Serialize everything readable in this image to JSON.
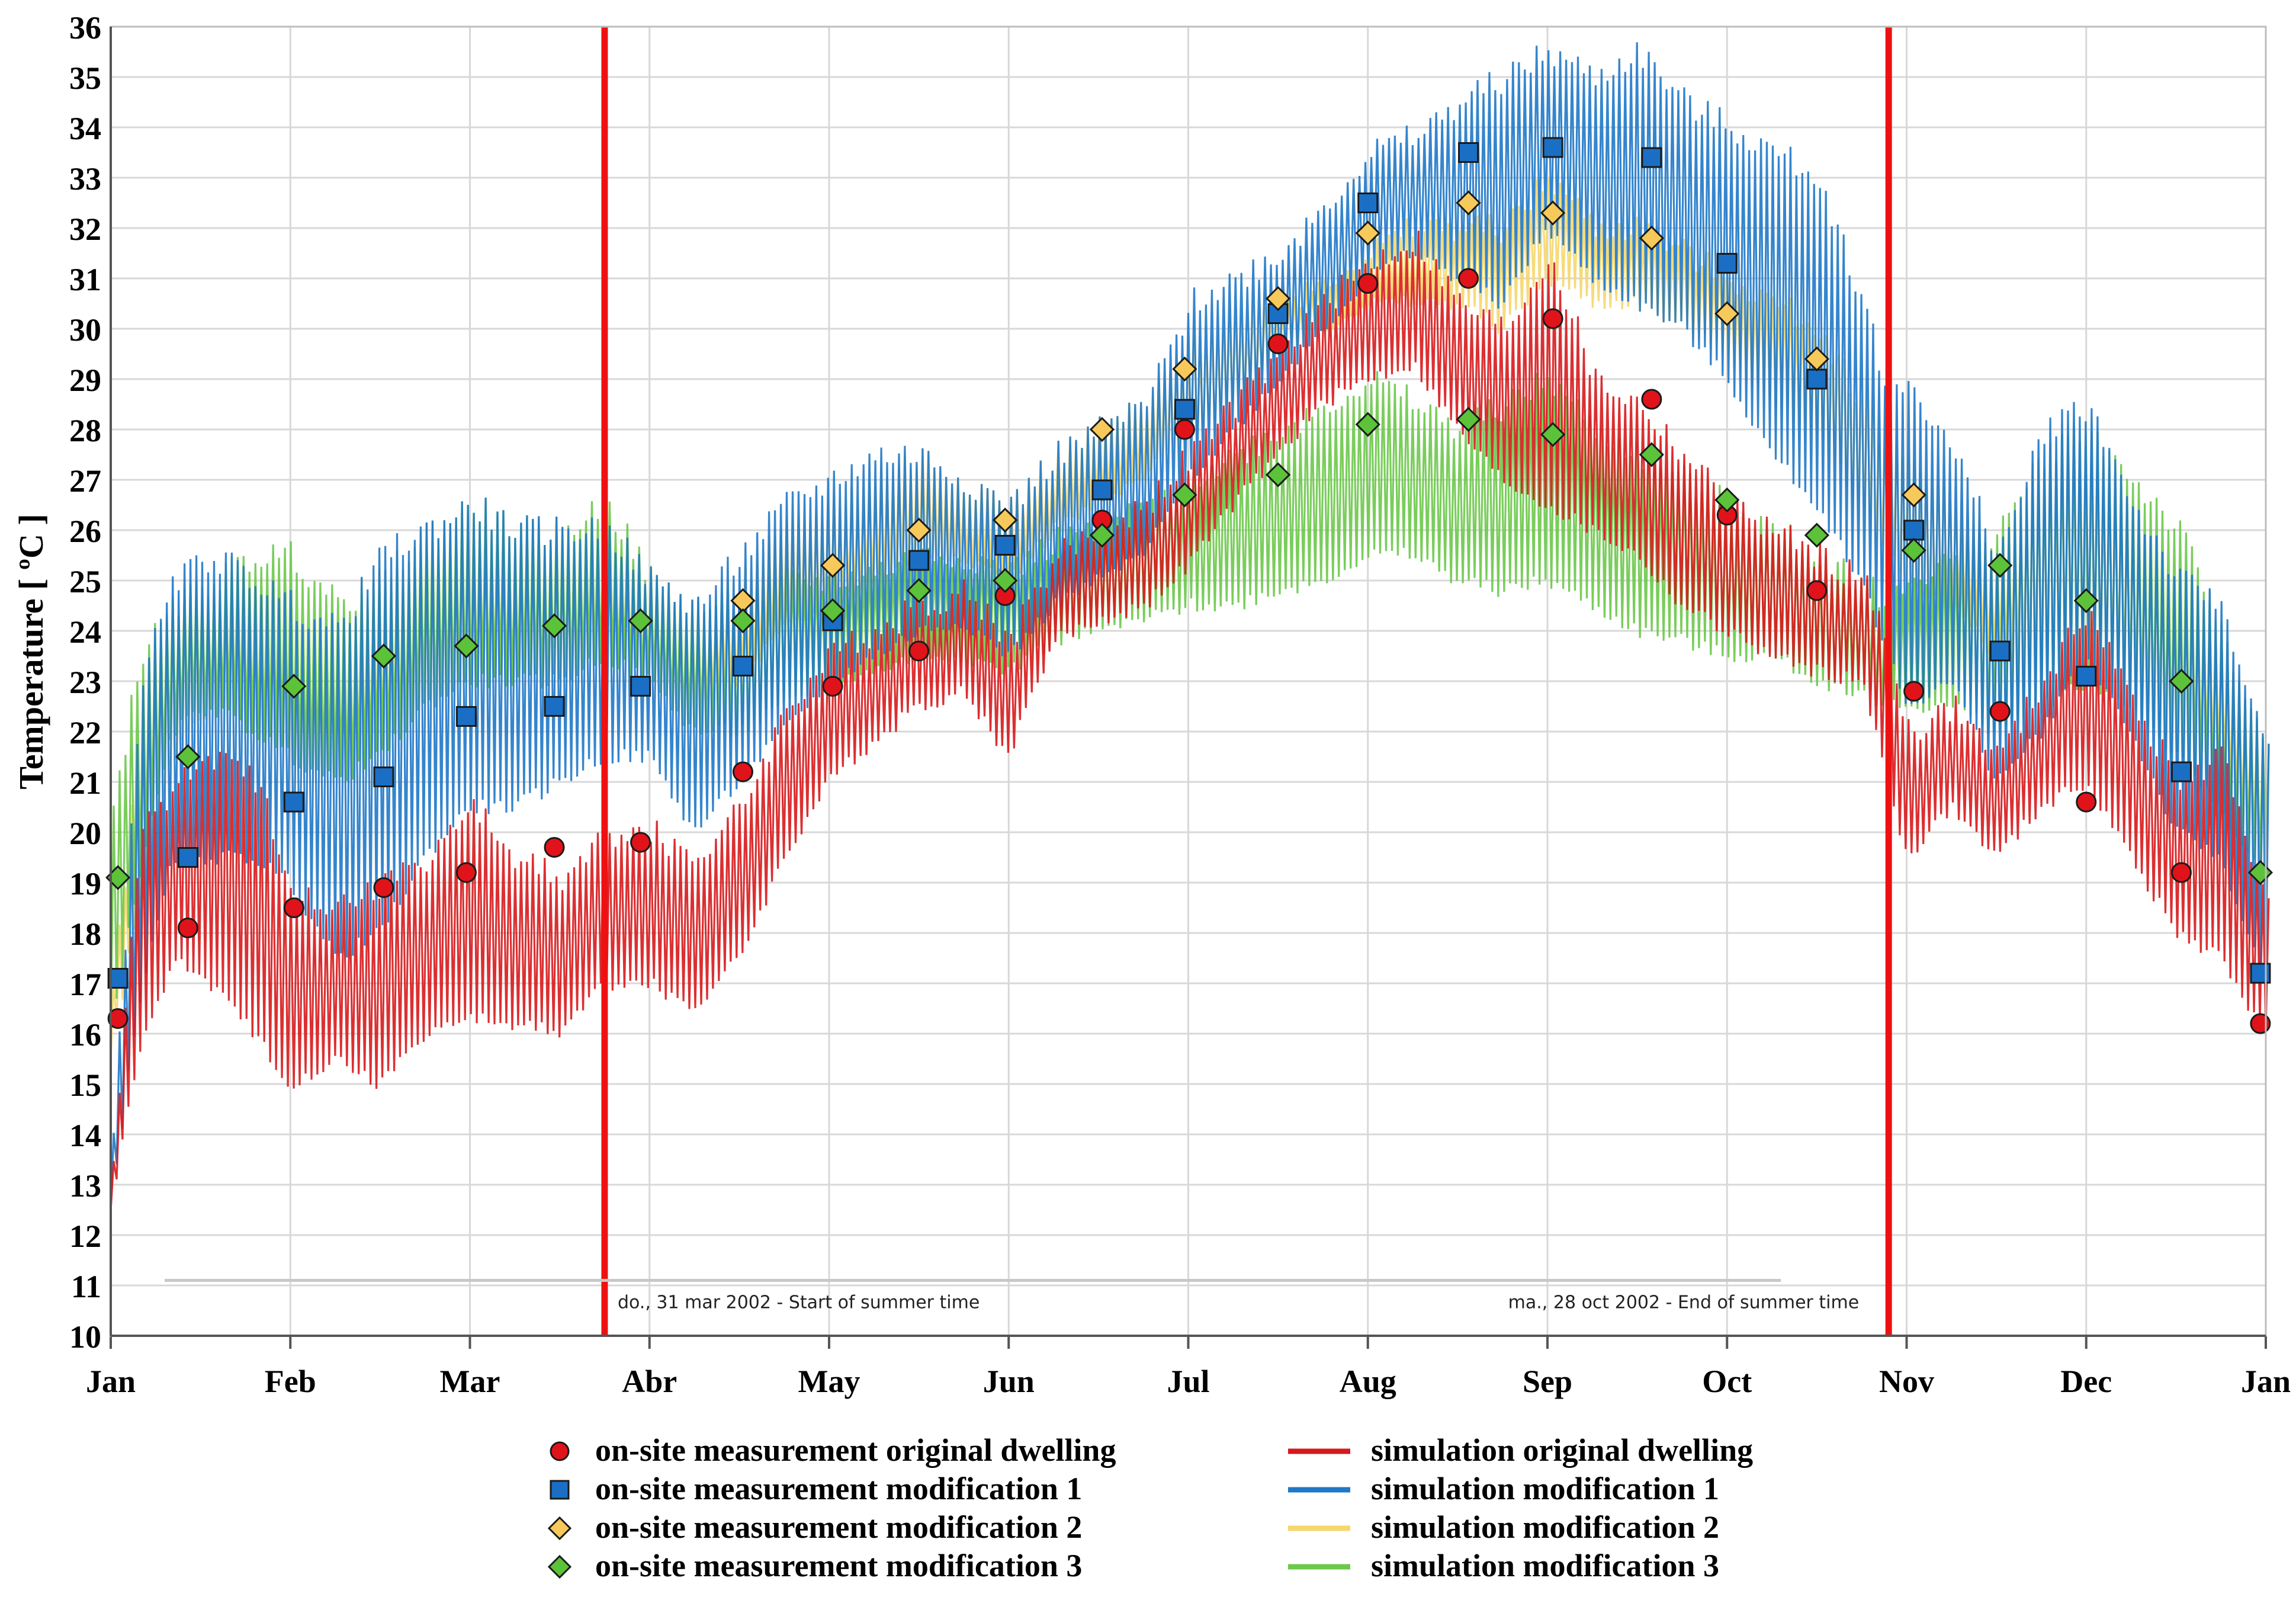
{
  "chart_data": {
    "type": "line",
    "title": "",
    "xlabel": "",
    "ylabel": "Temperature [ ºC ]",
    "ylim": [
      10,
      36
    ],
    "yticks": [
      10,
      11,
      12,
      13,
      14,
      15,
      16,
      17,
      18,
      19,
      20,
      21,
      22,
      23,
      24,
      25,
      26,
      27,
      28,
      29,
      30,
      31,
      32,
      33,
      34,
      35,
      36
    ],
    "xlim": [
      0,
      12
    ],
    "month_labels": [
      "Jan",
      "Feb",
      "Mar",
      "Abr",
      "May",
      "Jun",
      "Jul",
      "Aug",
      "Sep",
      "Oct",
      "Nov",
      "Dec",
      "Jan"
    ],
    "grid": true,
    "legend_position": "bottom",
    "colors": {
      "original": "#d7191c",
      "mod1": "#1f78c8",
      "mod2": "#f5d76e",
      "mod3": "#6cc84a",
      "marker_mod2": "#f7c95a",
      "marker_mod3": "#5cc23a",
      "marker_mod1": "#1a6fc4",
      "marker_orig": "#e0131a",
      "vline": "#ee1111",
      "grid": "#d8d8d8"
    },
    "annotations": [
      {
        "x": 2.75,
        "text": "do., 31 mar 2002 - Start of summer time",
        "side": "right"
      },
      {
        "x": 9.9,
        "text": "ma., 28 oct 2002 - End of summer time",
        "side": "left"
      }
    ],
    "vlines": [
      2.75,
      9.9
    ],
    "series": [
      {
        "name": "on-site measurement original dwelling",
        "kind": "marker",
        "shape": "circle",
        "color_key": "marker_orig",
        "x": [
          0.04,
          0.43,
          1.02,
          1.52,
          1.98,
          2.47,
          2.95,
          3.52,
          4.02,
          4.5,
          4.98,
          5.52,
          5.98,
          6.5,
          7.0,
          7.56,
          8.03,
          8.58,
          9.0,
          9.5,
          10.04,
          10.52,
          11.0,
          11.53,
          11.97
        ],
        "y": [
          16.3,
          18.1,
          18.5,
          18.9,
          19.2,
          19.7,
          19.8,
          21.2,
          22.9,
          23.6,
          24.7,
          26.2,
          28.0,
          29.7,
          30.9,
          31.0,
          30.2,
          28.6,
          26.3,
          24.8,
          22.8,
          22.4,
          20.6,
          19.2,
          16.2
        ]
      },
      {
        "name": "on-site measurement modification 1",
        "kind": "marker",
        "shape": "square",
        "color_key": "marker_mod1",
        "x": [
          0.04,
          0.43,
          1.02,
          1.52,
          1.98,
          2.47,
          2.95,
          3.52,
          4.02,
          4.5,
          4.98,
          5.52,
          5.98,
          6.5,
          7.0,
          7.56,
          8.03,
          8.58,
          9.0,
          9.5,
          10.04,
          10.52,
          11.0,
          11.53,
          11.97
        ],
        "y": [
          17.1,
          19.5,
          20.6,
          21.1,
          22.3,
          22.5,
          22.9,
          23.3,
          24.2,
          25.4,
          25.7,
          26.8,
          28.4,
          30.3,
          32.5,
          33.5,
          33.6,
          33.4,
          31.3,
          29.0,
          26.0,
          23.6,
          23.1,
          21.2,
          17.2
        ]
      },
      {
        "name": "on-site measurement modification 2",
        "kind": "marker",
        "shape": "diamond",
        "color_key": "marker_mod2",
        "x": [
          3.52,
          4.02,
          4.5,
          4.98,
          5.52,
          5.98,
          6.5,
          7.0,
          7.56,
          8.03,
          8.58,
          9.0,
          9.5,
          10.04
        ],
        "y": [
          24.6,
          25.3,
          26.0,
          26.2,
          28.0,
          29.2,
          30.6,
          31.9,
          32.5,
          32.3,
          31.8,
          30.3,
          29.4,
          26.7
        ]
      },
      {
        "name": "on-site measurement modification 3",
        "kind": "marker",
        "shape": "diamond",
        "color_key": "marker_mod3",
        "x": [
          0.04,
          0.43,
          1.02,
          1.52,
          1.98,
          2.47,
          2.95,
          3.52,
          4.02,
          4.5,
          4.98,
          5.52,
          5.98,
          6.5,
          7.0,
          7.56,
          8.03,
          8.58,
          9.0,
          9.5,
          10.04,
          10.52,
          11.0,
          11.53,
          11.97
        ],
        "y": [
          19.1,
          21.5,
          22.9,
          23.5,
          23.7,
          24.1,
          24.2,
          24.2,
          24.4,
          24.8,
          25.0,
          25.9,
          26.7,
          27.1,
          28.1,
          28.2,
          27.9,
          27.5,
          26.6,
          25.9,
          25.6,
          25.3,
          24.6,
          23.0,
          19.2
        ]
      },
      {
        "name": "simulation original dwelling",
        "kind": "band",
        "color_key": "original",
        "x": [
          0.0,
          0.15,
          0.35,
          0.55,
          0.8,
          1.0,
          1.25,
          1.5,
          1.75,
          2.0,
          2.25,
          2.5,
          2.75,
          3.0,
          3.25,
          3.5,
          3.75,
          4.0,
          4.25,
          4.5,
          4.75,
          5.0,
          5.25,
          5.5,
          5.75,
          6.0,
          6.25,
          6.5,
          6.75,
          7.0,
          7.25,
          7.5,
          7.75,
          8.0,
          8.25,
          8.5,
          8.75,
          9.0,
          9.25,
          9.5,
          9.75,
          9.9,
          10.0,
          10.25,
          10.5,
          10.75,
          11.0,
          11.25,
          11.5,
          11.75,
          12.0
        ],
        "lo": [
          12.5,
          15.5,
          17.5,
          17.0,
          16.0,
          15.0,
          15.5,
          15.0,
          16.0,
          16.3,
          16.2,
          16.0,
          17.0,
          17.0,
          16.5,
          17.5,
          19.5,
          21.0,
          21.8,
          22.5,
          22.8,
          21.5,
          23.8,
          24.2,
          24.5,
          25.3,
          26.5,
          27.5,
          28.5,
          29.0,
          29.3,
          28.0,
          27.0,
          26.5,
          26.0,
          25.5,
          24.5,
          24.0,
          23.5,
          23.2,
          23.0,
          21.0,
          19.5,
          20.5,
          19.5,
          20.5,
          21.0,
          19.5,
          18.0,
          17.5,
          16.0
        ],
        "hi": [
          13.5,
          20.0,
          21.0,
          21.5,
          21.0,
          19.0,
          18.5,
          19.0,
          19.5,
          20.5,
          19.5,
          19.0,
          20.0,
          20.0,
          19.5,
          20.5,
          22.5,
          23.5,
          24.0,
          24.5,
          24.8,
          23.8,
          25.5,
          26.0,
          26.5,
          27.5,
          28.5,
          29.5,
          30.5,
          31.3,
          31.8,
          30.5,
          30.0,
          31.5,
          29.0,
          28.5,
          27.5,
          26.5,
          26.0,
          25.5,
          25.0,
          23.5,
          22.0,
          22.5,
          21.5,
          23.0,
          24.5,
          22.5,
          21.0,
          21.5,
          18.5
        ]
      },
      {
        "name": "simulation modification 1",
        "kind": "band",
        "color_key": "mod1",
        "x": [
          0.0,
          0.15,
          0.35,
          0.55,
          0.8,
          1.0,
          1.25,
          1.5,
          1.75,
          2.0,
          2.25,
          2.5,
          2.75,
          3.0,
          3.25,
          3.5,
          3.75,
          4.0,
          4.25,
          4.5,
          4.75,
          5.0,
          5.25,
          5.5,
          5.75,
          6.0,
          6.25,
          6.5,
          6.75,
          7.0,
          7.25,
          7.5,
          7.75,
          8.0,
          8.25,
          8.5,
          8.75,
          9.0,
          9.25,
          9.5,
          9.75,
          9.9,
          10.0,
          10.25,
          10.5,
          10.75,
          11.0,
          11.25,
          11.5,
          11.75,
          12.0
        ],
        "lo": [
          12.5,
          16.5,
          19.5,
          19.5,
          19.5,
          19.0,
          17.5,
          18.0,
          19.5,
          20.5,
          20.5,
          21.0,
          21.5,
          21.5,
          20.0,
          21.0,
          22.0,
          23.0,
          23.5,
          24.0,
          24.2,
          23.5,
          24.5,
          25.0,
          25.5,
          27.0,
          28.0,
          29.0,
          30.0,
          31.0,
          31.5,
          31.0,
          30.5,
          32.0,
          31.0,
          30.5,
          30.0,
          29.0,
          27.5,
          26.5,
          25.0,
          23.5,
          22.5,
          23.0,
          21.0,
          22.0,
          23.5,
          22.0,
          20.0,
          19.5,
          17.0
        ],
        "hi": [
          14.0,
          23.0,
          25.0,
          25.5,
          25.0,
          24.5,
          24.0,
          25.5,
          26.0,
          26.5,
          26.0,
          26.0,
          26.0,
          25.0,
          24.5,
          25.5,
          26.5,
          27.0,
          27.5,
          27.5,
          27.0,
          26.5,
          27.5,
          28.0,
          28.5,
          30.5,
          31.0,
          31.5,
          32.5,
          33.5,
          33.8,
          34.5,
          35.0,
          35.5,
          35.0,
          35.5,
          34.5,
          34.0,
          33.5,
          33.0,
          30.5,
          28.5,
          29.0,
          27.5,
          25.5,
          28.0,
          28.5,
          26.5,
          25.0,
          24.5,
          21.5
        ]
      },
      {
        "name": "simulation modification 2",
        "kind": "band",
        "color_key": "mod2",
        "x": [
          0.0,
          0.15,
          0.35,
          0.55,
          0.8,
          1.0,
          1.25,
          1.5,
          1.75,
          2.0,
          2.25,
          2.5,
          2.75,
          3.0,
          3.25,
          3.5,
          3.75,
          4.0,
          4.25,
          4.5,
          4.75,
          5.0,
          5.25,
          5.5,
          5.75,
          6.0,
          6.25,
          6.5,
          6.75,
          7.0,
          7.25,
          7.5,
          7.75,
          8.0,
          8.25,
          8.5,
          8.75,
          9.0,
          9.25,
          9.5,
          9.75,
          9.9,
          10.0,
          10.25,
          10.5,
          10.75,
          11.0,
          11.25,
          11.5,
          11.75,
          12.0
        ],
        "lo": [
          15.5,
          18.5,
          21.5,
          22.5,
          22.0,
          21.5,
          21.0,
          21.5,
          22.5,
          23.0,
          23.0,
          23.0,
          23.5,
          23.0,
          22.5,
          23.0,
          24.0,
          24.5,
          25.0,
          25.5,
          25.5,
          25.0,
          26.0,
          26.5,
          27.0,
          28.0,
          28.5,
          29.5,
          30.0,
          30.5,
          30.5,
          30.5,
          30.0,
          31.0,
          30.5,
          30.5,
          30.0,
          29.5,
          28.5,
          28.0,
          26.5,
          25.5,
          25.0,
          24.5,
          23.5,
          24.0,
          24.5,
          23.5,
          22.0,
          21.5,
          19.0
        ],
        "hi": [
          17.0,
          22.0,
          24.5,
          24.5,
          24.0,
          23.5,
          23.5,
          24.5,
          25.0,
          25.5,
          25.0,
          25.0,
          25.5,
          24.5,
          24.0,
          25.0,
          26.0,
          26.5,
          27.0,
          27.5,
          27.0,
          26.5,
          27.5,
          28.0,
          28.5,
          29.5,
          30.0,
          30.5,
          31.0,
          31.5,
          32.0,
          32.0,
          32.0,
          33.0,
          32.0,
          32.0,
          31.5,
          31.0,
          30.5,
          30.0,
          28.5,
          27.5,
          27.5,
          26.5,
          25.5,
          26.5,
          26.5,
          25.5,
          24.5,
          24.0,
          21.5
        ]
      },
      {
        "name": "simulation modification 3",
        "kind": "band",
        "color_key": "mod3",
        "x": [
          0.0,
          0.15,
          0.35,
          0.55,
          0.8,
          1.0,
          1.25,
          1.5,
          1.75,
          2.0,
          2.25,
          2.5,
          2.75,
          3.0,
          3.25,
          3.5,
          3.75,
          4.0,
          4.25,
          4.5,
          4.75,
          5.0,
          5.25,
          5.5,
          5.75,
          6.0,
          6.25,
          6.5,
          6.75,
          7.0,
          7.25,
          7.5,
          7.75,
          8.0,
          8.25,
          8.5,
          8.75,
          9.0,
          9.25,
          9.5,
          9.75,
          9.9,
          10.0,
          10.25,
          10.5,
          10.75,
          11.0,
          11.25,
          11.5,
          11.75,
          12.0
        ],
        "lo": [
          16.0,
          19.0,
          22.0,
          22.5,
          22.0,
          21.5,
          21.0,
          21.5,
          22.5,
          23.0,
          23.0,
          23.0,
          23.5,
          23.0,
          22.0,
          22.0,
          22.5,
          23.0,
          23.2,
          23.5,
          23.5,
          23.2,
          23.8,
          24.0,
          24.2,
          24.5,
          24.5,
          24.8,
          25.0,
          25.5,
          25.5,
          25.0,
          24.8,
          25.0,
          24.5,
          24.0,
          23.8,
          23.5,
          23.5,
          23.0,
          22.8,
          22.5,
          22.5,
          22.5,
          22.0,
          22.5,
          23.0,
          22.5,
          21.5,
          20.5,
          19.0
        ],
        "hi": [
          20.5,
          23.5,
          24.5,
          25.0,
          25.5,
          25.5,
          24.5,
          25.0,
          26.0,
          26.5,
          26.0,
          26.0,
          26.5,
          25.0,
          24.5,
          24.5,
          25.0,
          25.0,
          25.2,
          25.5,
          25.5,
          25.2,
          25.8,
          26.0,
          26.5,
          27.0,
          27.5,
          28.0,
          28.5,
          29.0,
          28.5,
          28.0,
          28.5,
          29.0,
          28.0,
          27.5,
          27.0,
          26.5,
          26.0,
          25.5,
          25.0,
          24.5,
          25.0,
          25.5,
          26.0,
          27.5,
          28.0,
          27.0,
          26.0,
          24.0,
          21.5
        ]
      }
    ],
    "legend": [
      {
        "label": "on-site measurement original dwelling",
        "marker": "circle",
        "color_key": "marker_orig"
      },
      {
        "label": "on-site measurement modification 1",
        "marker": "square",
        "color_key": "marker_mod1"
      },
      {
        "label": "on-site measurement modification 2",
        "marker": "diamond",
        "color_key": "marker_mod2"
      },
      {
        "label": "on-site measurement modification 3",
        "marker": "diamond",
        "color_key": "marker_mod3"
      },
      {
        "label": "simulation original dwelling",
        "marker": "line",
        "color_key": "original"
      },
      {
        "label": "simulation modification 1",
        "marker": "line",
        "color_key": "mod1"
      },
      {
        "label": "simulation modification 2",
        "marker": "line",
        "color_key": "mod2"
      },
      {
        "label": "simulation modification 3",
        "marker": "line",
        "color_key": "mod3"
      }
    ]
  }
}
